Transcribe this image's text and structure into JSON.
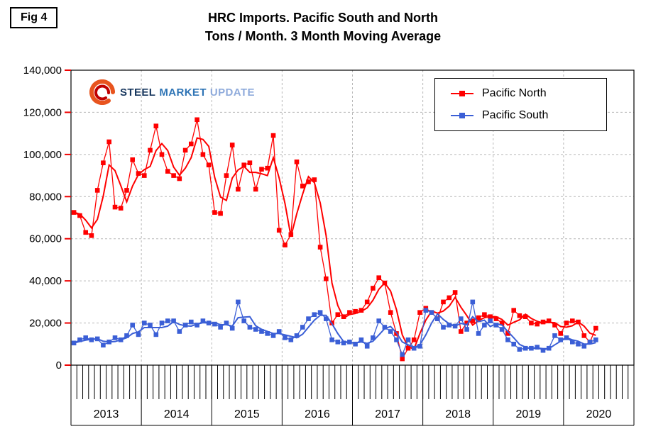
{
  "fig_label": "Fig 4",
  "title": {
    "line1": "HRC Imports. Pacific South and North",
    "line2": "Tons / Month. 3 Month Moving Average"
  },
  "logo": {
    "steel": "STEEL",
    "market": "MARKET",
    "update": "UPDATE"
  },
  "legend": [
    {
      "label": "Pacific North",
      "color": "#FF0000"
    },
    {
      "label": "Pacific South",
      "color": "#3B5FD6"
    }
  ],
  "chart_data": {
    "type": "line",
    "title": "HRC Imports. Pacific South and North",
    "subtitle": "Tons / Month. 3 Month Moving Average",
    "xlabel": "",
    "ylabel": "Tons / Month",
    "ylim": [
      0,
      140000
    ],
    "ytick_step": 20000,
    "ytick_labels": [
      "0",
      "20,000",
      "40,000",
      "60,000",
      "80,000",
      "100,000",
      "120,000",
      "140,000"
    ],
    "grid": true,
    "legend_position": "top-right",
    "x_start_month": "2013-01",
    "categories_total": 96,
    "years": [
      "2013",
      "2014",
      "2015",
      "2016",
      "2017",
      "2018",
      "2019",
      "2020"
    ],
    "moving_average_window": 3,
    "series": [
      {
        "name": "Pacific North",
        "color": "#FF0000",
        "values": [
          72500,
          71000,
          63000,
          61500,
          83000,
          96000,
          106000,
          75000,
          74500,
          83000,
          97500,
          91000,
          90000,
          102000,
          113500,
          100000,
          92000,
          90000,
          88500,
          102000,
          105000,
          116500,
          100000,
          95000,
          72500,
          72000,
          90000,
          104500,
          83500,
          95000,
          96000,
          83500,
          93000,
          93500,
          109000,
          64000,
          57000,
          62000,
          96500,
          85000,
          87000,
          88000,
          56000,
          41000,
          20000,
          24000,
          23000,
          25000,
          25500,
          26000,
          30000,
          36500,
          41500,
          39000,
          25000,
          15000,
          3000,
          8000,
          12000,
          25000,
          27000,
          25000,
          22000,
          30000,
          32000,
          34500,
          16000,
          20000,
          21000,
          22500,
          24000,
          23000,
          22000,
          20000,
          15000,
          26000,
          23500,
          23000,
          20000,
          19500,
          20500,
          21000,
          19000,
          15000,
          20000,
          21000,
          20500,
          14000,
          11000,
          17500
        ]
      },
      {
        "name": "Pacific South",
        "color": "#3B5FD6",
        "values": [
          10500,
          12000,
          13000,
          12000,
          12500,
          9500,
          11000,
          13000,
          12000,
          14000,
          19000,
          14500,
          20000,
          19000,
          14500,
          20000,
          21000,
          21000,
          16000,
          19000,
          20500,
          19000,
          21000,
          20000,
          19500,
          18000,
          20000,
          17500,
          30000,
          21000,
          18000,
          17000,
          16000,
          15000,
          14000,
          16000,
          13000,
          12000,
          14000,
          18000,
          22000,
          24000,
          25000,
          22000,
          12000,
          11000,
          10500,
          11000,
          10000,
          12000,
          9000,
          13000,
          21000,
          18000,
          16000,
          12000,
          5000,
          12000,
          8000,
          9000,
          26000,
          25000,
          22000,
          18000,
          19000,
          18500,
          22000,
          17000,
          30000,
          15000,
          19000,
          21000,
          19000,
          17000,
          12000,
          10000,
          7500,
          8000,
          8000,
          8500,
          7000,
          8000,
          14000,
          12000,
          13000,
          11000,
          10000,
          9000,
          11000,
          12000
        ]
      }
    ]
  }
}
